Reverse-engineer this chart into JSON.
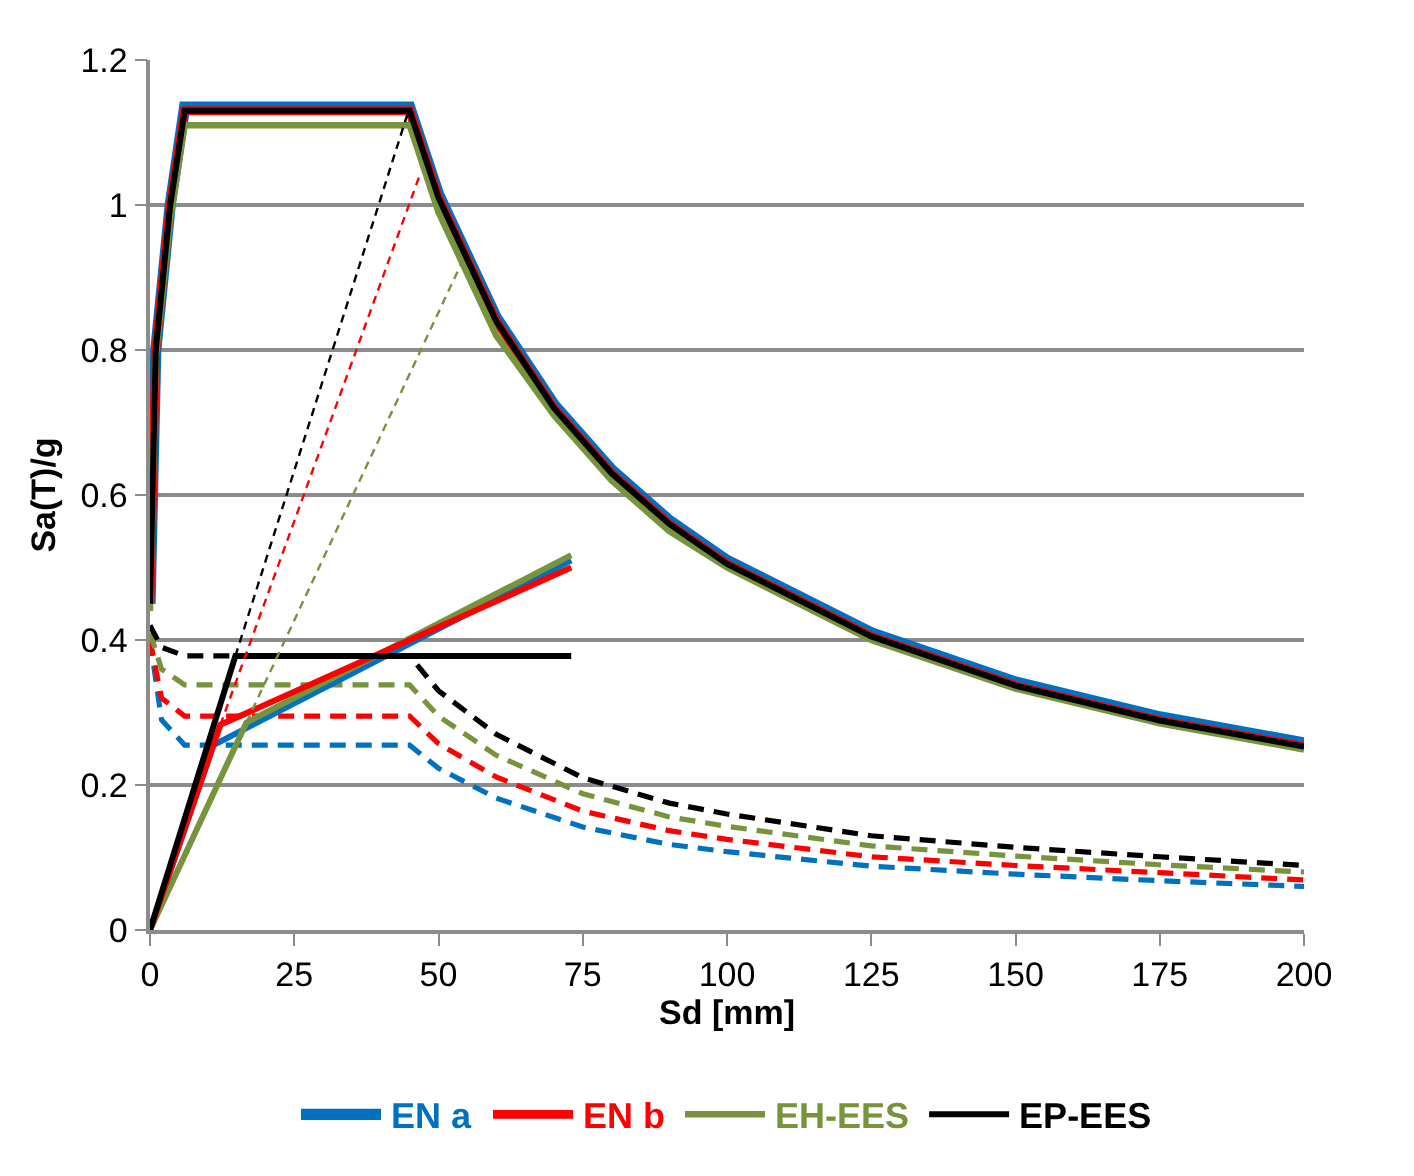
{
  "chart_data": {
    "type": "line",
    "xlabel": "Sd [mm]",
    "ylabel": "Sa(T)/g",
    "xlim": [
      0,
      200
    ],
    "xticks": [
      0,
      25,
      50,
      75,
      100,
      125,
      150,
      175,
      200
    ],
    "ylim": [
      0,
      1.2
    ],
    "yticks": [
      0,
      0.2,
      0.4,
      0.6,
      0.8,
      1,
      1.2
    ],
    "grid": "y",
    "legend": "bottom",
    "marker": "none",
    "series": [
      {
        "name": "EN a",
        "color": "#0070c0",
        "line_style": "solid",
        "x": [
          0,
          1,
          3.5,
          6,
          45,
          50,
          60,
          70,
          80,
          90,
          100,
          125,
          150,
          175,
          200
        ],
        "values": [
          0.45,
          0.8,
          1.0,
          1.135,
          1.135,
          1.015,
          0.845,
          0.725,
          0.635,
          0.565,
          0.51,
          0.41,
          0.342,
          0.294,
          0.258
        ]
      },
      {
        "name": "EN b",
        "color": "#ff0000",
        "line_style": "solid",
        "x": [
          0,
          1,
          3.5,
          6,
          45,
          50,
          60,
          70,
          80,
          90,
          100,
          125,
          150,
          175,
          200
        ],
        "values": [
          0.45,
          0.8,
          1.0,
          1.13,
          1.13,
          1.01,
          0.84,
          0.72,
          0.63,
          0.56,
          0.505,
          0.405,
          0.337,
          0.289,
          0.253
        ]
      },
      {
        "name": "EH-EES",
        "color": "#77933c",
        "line_style": "solid",
        "x": [
          0,
          1,
          3.5,
          6,
          45,
          50,
          60,
          70,
          80,
          90,
          100,
          125,
          150,
          175,
          200
        ],
        "values": [
          0.44,
          0.79,
          0.98,
          1.11,
          1.11,
          0.99,
          0.82,
          0.71,
          0.62,
          0.55,
          0.5,
          0.4,
          0.333,
          0.285,
          0.249
        ]
      },
      {
        "name": "EP-EES",
        "color": "#000000",
        "line_style": "solid",
        "x": [
          0,
          1,
          3.5,
          6,
          45,
          50,
          60,
          70,
          80,
          90,
          100,
          125,
          150,
          175,
          200
        ],
        "values": [
          0.45,
          0.8,
          1.0,
          1.13,
          1.13,
          1.01,
          0.84,
          0.72,
          0.63,
          0.56,
          0.505,
          0.405,
          0.337,
          0.289,
          0.253
        ]
      },
      {
        "color": "#0070c0",
        "line_style": "dashed",
        "x": [
          0,
          2,
          6,
          45,
          50,
          60,
          75,
          90,
          100,
          125,
          150,
          175,
          200
        ],
        "values": [
          0.4,
          0.29,
          0.255,
          0.255,
          0.223,
          0.182,
          0.142,
          0.118,
          0.108,
          0.088,
          0.077,
          0.068,
          0.06
        ]
      },
      {
        "color": "#ff0000",
        "line_style": "dashed",
        "x": [
          0,
          2,
          6,
          45,
          50,
          60,
          75,
          90,
          100,
          125,
          150,
          175,
          200
        ],
        "values": [
          0.4,
          0.32,
          0.295,
          0.295,
          0.257,
          0.211,
          0.164,
          0.137,
          0.125,
          0.101,
          0.089,
          0.079,
          0.069
        ]
      },
      {
        "color": "#77933c",
        "line_style": "dashed",
        "x": [
          0,
          2,
          6,
          45,
          50,
          60,
          75,
          90,
          100,
          125,
          150,
          175,
          200
        ],
        "values": [
          0.41,
          0.36,
          0.338,
          0.338,
          0.295,
          0.241,
          0.188,
          0.156,
          0.143,
          0.116,
          0.102,
          0.09,
          0.08
        ]
      },
      {
        "color": "#000000",
        "line_style": "dashed",
        "x": [
          0,
          2,
          6,
          45,
          50,
          60,
          75,
          90,
          100,
          125,
          150,
          175,
          200
        ],
        "values": [
          0.42,
          0.39,
          0.378,
          0.378,
          0.33,
          0.27,
          0.21,
          0.175,
          0.16,
          0.13,
          0.114,
          0.101,
          0.089
        ]
      },
      {
        "color": "#0070c0",
        "line_style": "solid",
        "x": [
          0,
          11,
          73
        ],
        "values": [
          0,
          0.255,
          0.51
        ]
      },
      {
        "color": "#77933c",
        "line_style": "solid",
        "x": [
          0,
          16.7,
          73
        ],
        "values": [
          0,
          0.286,
          0.517
        ]
      },
      {
        "color": "#ff0000",
        "line_style": "solid",
        "x": [
          0,
          12.2,
          73
        ],
        "values": [
          0,
          0.283,
          0.5
        ]
      },
      {
        "color": "#000000",
        "line_style": "solid",
        "x": [
          0,
          14.8,
          73
        ],
        "values": [
          0,
          0.378,
          0.378
        ]
      },
      {
        "color": "#ff0000",
        "line_style": "dotted",
        "x": [
          12.2,
          46.7
        ],
        "values": [
          0.283,
          1.04
        ]
      },
      {
        "color": "#77933c",
        "line_style": "dotted",
        "x": [
          16.7,
          54
        ],
        "values": [
          0.286,
          0.92
        ]
      },
      {
        "color": "#000000",
        "line_style": "dotted",
        "x": [
          14.8,
          44.8
        ],
        "values": [
          0.378,
          1.13
        ]
      }
    ]
  }
}
